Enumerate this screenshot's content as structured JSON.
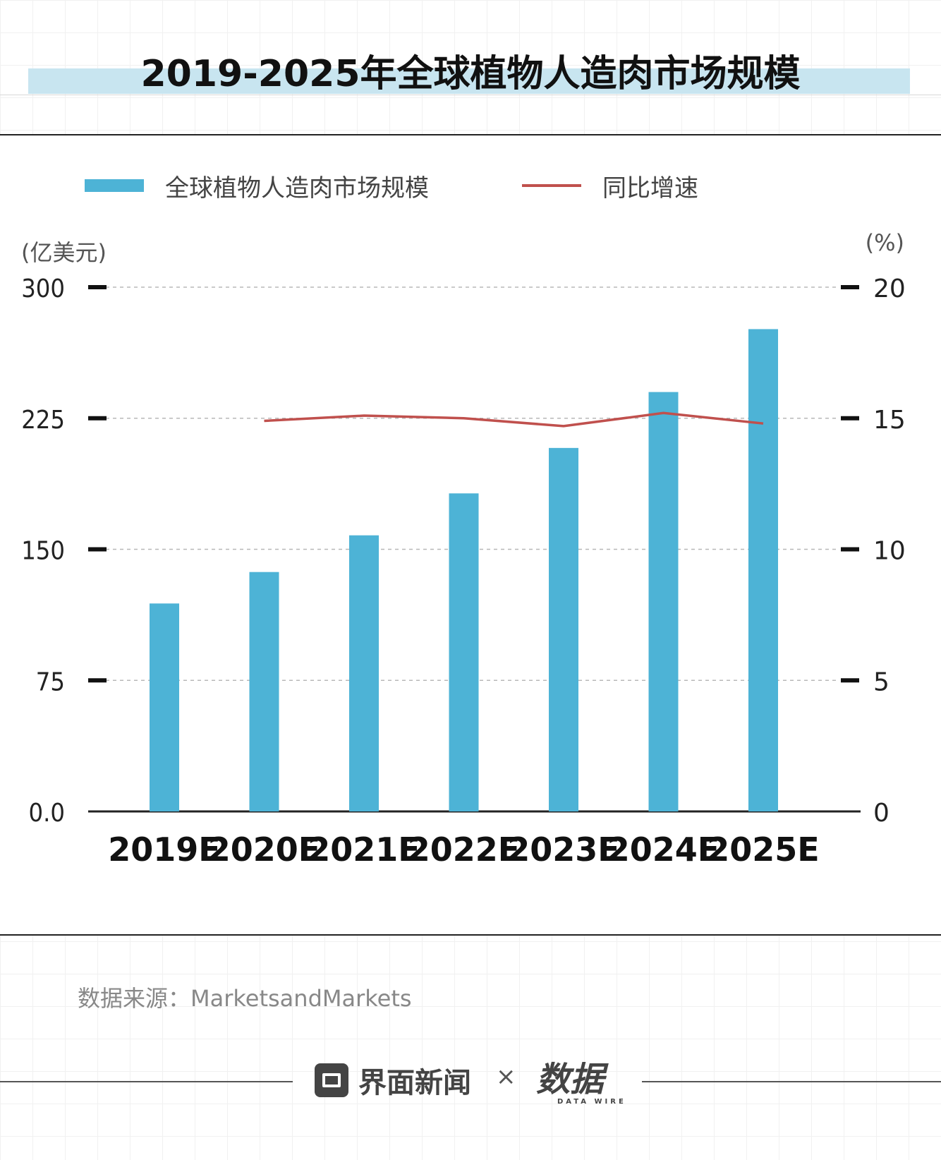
{
  "title": "2019-2025年全球植物人造肉市场规模",
  "legend": {
    "bar_label": "全球植物人造肉市场规模",
    "line_label": "同比增速"
  },
  "units": {
    "left": "(亿美元)",
    "right": "(%)"
  },
  "source": "数据来源：MarketsandMarkets",
  "footer": {
    "brand": "界面新闻",
    "separator": "×",
    "partner": "数据",
    "partner_sub": "DATA WIRE"
  },
  "colors": {
    "bar": "#4db3d6",
    "line": "#c0504d",
    "title_band": "#c8e5f0"
  },
  "chart_data": {
    "type": "bar",
    "title": "2019-2025年全球植物人造肉市场规模",
    "categories": [
      "2019E",
      "2020E",
      "2021E",
      "2022E",
      "2023E",
      "2024E",
      "2025E"
    ],
    "series": [
      {
        "name": "全球植物人造肉市场规模",
        "type": "bar",
        "axis": "left",
        "values": [
          119,
          137,
          158,
          182,
          208,
          240,
          276
        ]
      },
      {
        "name": "同比增速",
        "type": "line",
        "axis": "right",
        "values": [
          null,
          14.9,
          15.1,
          15.0,
          14.7,
          15.2,
          14.8
        ]
      }
    ],
    "left_axis": {
      "label": "(亿美元)",
      "ylim": [
        0,
        300
      ],
      "ticks": [
        "0.0",
        "75",
        "150",
        "225",
        "300"
      ],
      "tick_values": [
        0,
        75,
        150,
        225,
        300
      ]
    },
    "right_axis": {
      "label": "(%)",
      "ylim": [
        0,
        20
      ],
      "ticks": [
        "0",
        "5",
        "10",
        "15",
        "20"
      ],
      "tick_values": [
        0,
        5,
        10,
        15,
        20
      ]
    },
    "grid": true,
    "legend_position": "top"
  }
}
